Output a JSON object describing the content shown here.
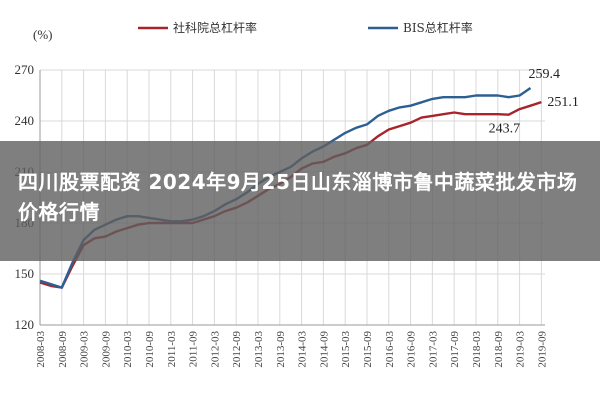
{
  "banner": {
    "title": "四川股票配资 2024年9月25日山东淄博市鲁中蔬菜批发市场价格行情"
  },
  "colors": {
    "series_red": "#a8242c",
    "series_blue": "#2e5f93",
    "grid": "#d9d9d9",
    "axis": "#999999"
  },
  "chart_data": {
    "type": "line",
    "ylabel": "(%)",
    "ylim": [
      120,
      270
    ],
    "yticks": [
      120,
      150,
      180,
      210,
      240,
      270
    ],
    "x": [
      "2008-03",
      "2008-09",
      "2009-03",
      "2009-09",
      "2010-03",
      "2010-09",
      "2011-03",
      "2011-09",
      "2012-03",
      "2012-09",
      "2013-03",
      "2013-09",
      "2014-03",
      "2014-09",
      "2015-03",
      "2015-09",
      "2016-03",
      "2016-09",
      "2017-03",
      "2017-09",
      "2018-03",
      "2018-09",
      "2019-03",
      "2019-09"
    ],
    "legend_position": "top",
    "series": [
      {
        "name": "社科院总杠杆率",
        "color": "#a8242c",
        "points": [
          [
            "2008-03",
            145
          ],
          [
            "2008-06",
            143
          ],
          [
            "2008-09",
            142
          ],
          [
            "2008-12",
            155
          ],
          [
            "2009-03",
            167
          ],
          [
            "2009-06",
            171
          ],
          [
            "2009-09",
            172
          ],
          [
            "2009-12",
            175
          ],
          [
            "2010-03",
            177
          ],
          [
            "2010-06",
            179
          ],
          [
            "2010-09",
            180
          ],
          [
            "2010-12",
            180
          ],
          [
            "2011-03",
            180
          ],
          [
            "2011-06",
            180
          ],
          [
            "2011-09",
            180
          ],
          [
            "2011-12",
            182
          ],
          [
            "2012-03",
            184
          ],
          [
            "2012-06",
            187
          ],
          [
            "2012-09",
            189
          ],
          [
            "2012-12",
            192
          ],
          [
            "2013-03",
            196
          ],
          [
            "2013-06",
            200
          ],
          [
            "2013-09",
            203
          ],
          [
            "2013-12",
            207
          ],
          [
            "2014-03",
            212
          ],
          [
            "2014-06",
            215
          ],
          [
            "2014-09",
            216
          ],
          [
            "2014-12",
            219
          ],
          [
            "2015-03",
            221
          ],
          [
            "2015-06",
            224
          ],
          [
            "2015-09",
            226
          ],
          [
            "2015-12",
            231
          ],
          [
            "2016-03",
            235
          ],
          [
            "2016-06",
            237
          ],
          [
            "2016-09",
            239
          ],
          [
            "2016-12",
            242
          ],
          [
            "2017-03",
            243
          ],
          [
            "2017-06",
            244
          ],
          [
            "2017-09",
            245
          ],
          [
            "2017-12",
            244
          ],
          [
            "2018-03",
            244
          ],
          [
            "2018-06",
            244
          ],
          [
            "2018-09",
            244
          ],
          [
            "2018-12",
            243.7
          ],
          [
            "2019-03",
            247
          ],
          [
            "2019-06",
            249
          ],
          [
            "2019-09",
            251.1
          ]
        ]
      },
      {
        "name": "BIS总杠杆率",
        "color": "#2e5f93",
        "points": [
          [
            "2008-03",
            146
          ],
          [
            "2008-06",
            144
          ],
          [
            "2008-09",
            142
          ],
          [
            "2008-12",
            157
          ],
          [
            "2009-03",
            170
          ],
          [
            "2009-06",
            176
          ],
          [
            "2009-09",
            179
          ],
          [
            "2009-12",
            182
          ],
          [
            "2010-03",
            184
          ],
          [
            "2010-06",
            184
          ],
          [
            "2010-09",
            183
          ],
          [
            "2010-12",
            182
          ],
          [
            "2011-03",
            181
          ],
          [
            "2011-06",
            181
          ],
          [
            "2011-09",
            182
          ],
          [
            "2011-12",
            184
          ],
          [
            "2012-03",
            187
          ],
          [
            "2012-06",
            191
          ],
          [
            "2012-09",
            194
          ],
          [
            "2012-12",
            198
          ],
          [
            "2013-03",
            203
          ],
          [
            "2013-06",
            207
          ],
          [
            "2013-09",
            210
          ],
          [
            "2013-12",
            213
          ],
          [
            "2014-03",
            218
          ],
          [
            "2014-06",
            222
          ],
          [
            "2014-09",
            225
          ],
          [
            "2014-12",
            229
          ],
          [
            "2015-03",
            233
          ],
          [
            "2015-06",
            236
          ],
          [
            "2015-09",
            238
          ],
          [
            "2015-12",
            243
          ],
          [
            "2016-03",
            246
          ],
          [
            "2016-06",
            248
          ],
          [
            "2016-09",
            249
          ],
          [
            "2016-12",
            251
          ],
          [
            "2017-03",
            253
          ],
          [
            "2017-06",
            254
          ],
          [
            "2017-09",
            254
          ],
          [
            "2017-12",
            254
          ],
          [
            "2018-03",
            255
          ],
          [
            "2018-06",
            255
          ],
          [
            "2018-09",
            255
          ],
          [
            "2018-12",
            254
          ],
          [
            "2019-03",
            255
          ],
          [
            "2019-06",
            259.4
          ]
        ]
      }
    ],
    "annotations": [
      {
        "text": "259.4",
        "x": "2019-06",
        "y": 259.4
      },
      {
        "text": "251.1",
        "x": "2019-09",
        "y": 251.1
      },
      {
        "text": "243.7",
        "x": "2018-12",
        "y": 243.7
      }
    ]
  }
}
